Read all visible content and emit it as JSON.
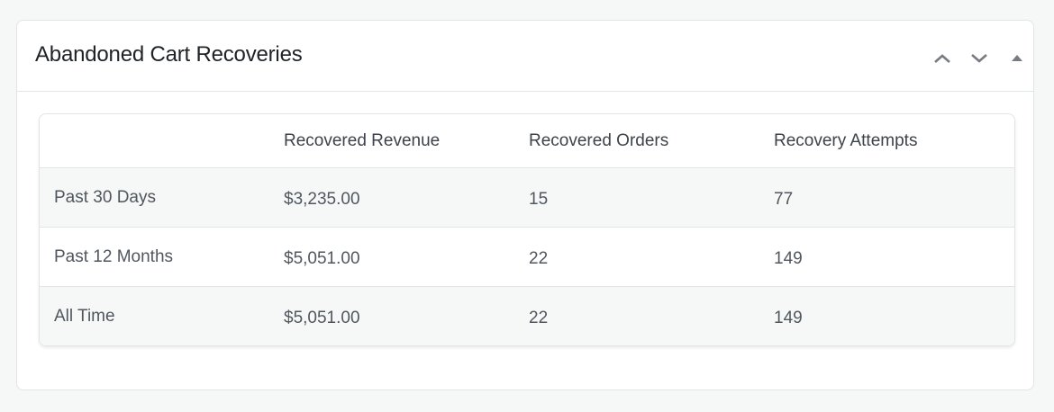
{
  "widget": {
    "title": "Abandoned Cart Recoveries",
    "controls": [
      {
        "icon": "chevron-up-icon",
        "label": "Move up"
      },
      {
        "icon": "chevron-down-icon",
        "label": "Move down"
      },
      {
        "icon": "triangle-up-icon",
        "label": "Toggle panel"
      }
    ]
  },
  "table": {
    "headers": [
      "",
      "Recovered Revenue",
      "Recovered Orders",
      "Recovery Attempts"
    ],
    "rows": [
      {
        "period": "Past 30 Days",
        "revenue": "$3,235.00",
        "orders": "15",
        "attempts": "77"
      },
      {
        "period": "Past 12 Months",
        "revenue": "$5,051.00",
        "orders": "22",
        "attempts": "149"
      },
      {
        "period": "All Time",
        "revenue": "$5,051.00",
        "orders": "22",
        "attempts": "149"
      }
    ]
  }
}
